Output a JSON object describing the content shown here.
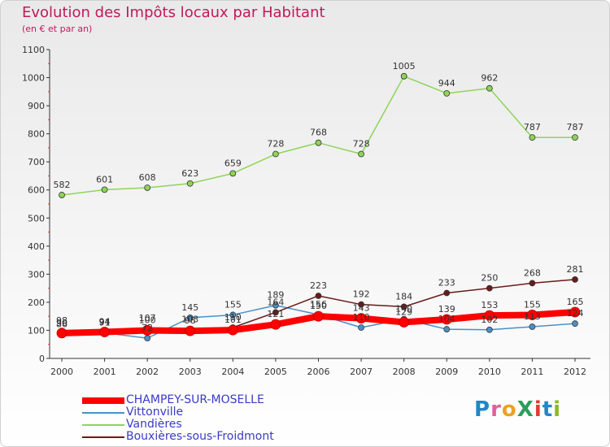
{
  "title": "Evolution des Impôts locaux par Habitant",
  "subtitle": "(en € et par an)",
  "logo": {
    "text": "ProXiti",
    "colors": [
      "#1e88c8",
      "#e0609a",
      "#f0a020",
      "#2e9c5a",
      "#e53935",
      "#1e88c8",
      "#8ab82a"
    ]
  },
  "chart_data": {
    "type": "line",
    "x": [
      "2000",
      "2001",
      "2002",
      "2003",
      "2004",
      "2005",
      "2006",
      "2007",
      "2008",
      "2009",
      "2010",
      "2011",
      "2012"
    ],
    "ylim": [
      0,
      1100
    ],
    "yticks": [
      0,
      100,
      200,
      300,
      400,
      500,
      600,
      700,
      800,
      900,
      1000,
      1100
    ],
    "grid": false,
    "legend_position": "bottom-left",
    "series": [
      {
        "name": "CHAMPEY-SUR-MOSELLE",
        "color": "#ff0000",
        "width": 8,
        "values": [
          90,
          94,
          100,
          98,
          101,
          121,
          150,
          143,
          129,
          139,
          153,
          155,
          165
        ],
        "labels_above": false
      },
      {
        "name": "Vittonville",
        "color": "#4a90c8",
        "width": 1.5,
        "values": [
          98,
          91,
          72,
          145,
          155,
          189,
          156,
          110,
          140,
          104,
          102,
          113,
          124
        ],
        "labels_above": false
      },
      {
        "name": "Vandières",
        "color": "#8ed45a",
        "width": 1.5,
        "values": [
          582,
          601,
          608,
          623,
          659,
          728,
          768,
          728,
          1005,
          944,
          962,
          787,
          787
        ],
        "labels_above": true
      },
      {
        "name": "Bouxières-sous-Froidmont",
        "color": "#6b1a1a",
        "width": 1.5,
        "values": [
          86,
          94,
          107,
          103,
          110,
          164,
          223,
          192,
          184,
          233,
          250,
          268,
          281
        ],
        "labels_above": true
      }
    ]
  }
}
